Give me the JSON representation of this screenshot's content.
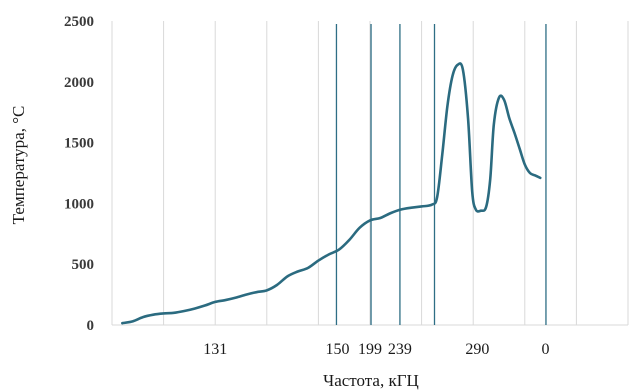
{
  "chart_data": {
    "type": "line",
    "xlabel": "Частота, кГЦ",
    "ylabel": "Температура, °C",
    "ylim": [
      0,
      2500
    ],
    "yticks": [
      0,
      500,
      1000,
      1500,
      2000,
      2500
    ],
    "xlim": [
      0,
      100
    ],
    "x_tick_labels": [
      {
        "x": 20,
        "label": "131"
      },
      {
        "x": 43.7,
        "label": "150"
      },
      {
        "x": 50,
        "label": "199"
      },
      {
        "x": 55.8,
        "label": "239"
      },
      {
        "x": 70.8,
        "label": "290"
      },
      {
        "x": 84,
        "label": "0"
      }
    ],
    "vertical_markers": [
      43.5,
      50.2,
      55.8,
      62.5,
      84.1
    ],
    "grid": {
      "vertical": [
        10,
        20,
        30,
        40,
        50,
        60,
        70,
        80,
        90,
        100
      ],
      "horizontal": false
    },
    "series": [
      {
        "color": "#2b6b80",
        "points": [
          [
            2,
            15
          ],
          [
            4,
            30
          ],
          [
            6,
            65
          ],
          [
            8,
            85
          ],
          [
            10,
            95
          ],
          [
            12,
            100
          ],
          [
            14,
            115
          ],
          [
            16,
            135
          ],
          [
            18,
            160
          ],
          [
            20,
            190
          ],
          [
            22,
            205
          ],
          [
            24,
            225
          ],
          [
            26,
            250
          ],
          [
            28,
            270
          ],
          [
            30,
            285
          ],
          [
            32,
            330
          ],
          [
            34,
            400
          ],
          [
            36,
            440
          ],
          [
            38,
            470
          ],
          [
            40,
            530
          ],
          [
            42,
            580
          ],
          [
            44,
            620
          ],
          [
            46,
            700
          ],
          [
            48,
            800
          ],
          [
            50,
            860
          ],
          [
            52,
            880
          ],
          [
            54,
            920
          ],
          [
            56,
            950
          ],
          [
            58,
            965
          ],
          [
            60,
            975
          ],
          [
            62,
            990
          ],
          [
            63,
            1050
          ],
          [
            64,
            1400
          ],
          [
            65,
            1800
          ],
          [
            66,
            2050
          ],
          [
            67,
            2140
          ],
          [
            68,
            2100
          ],
          [
            69,
            1700
          ],
          [
            69.8,
            1100
          ],
          [
            70.5,
            950
          ],
          [
            71.5,
            940
          ],
          [
            72.5,
            970
          ],
          [
            73.3,
            1200
          ],
          [
            74,
            1650
          ],
          [
            75,
            1870
          ],
          [
            76,
            1850
          ],
          [
            77,
            1700
          ],
          [
            78,
            1580
          ],
          [
            79,
            1450
          ],
          [
            80,
            1320
          ],
          [
            81,
            1250
          ],
          [
            82,
            1230
          ],
          [
            83,
            1210
          ]
        ]
      }
    ]
  }
}
